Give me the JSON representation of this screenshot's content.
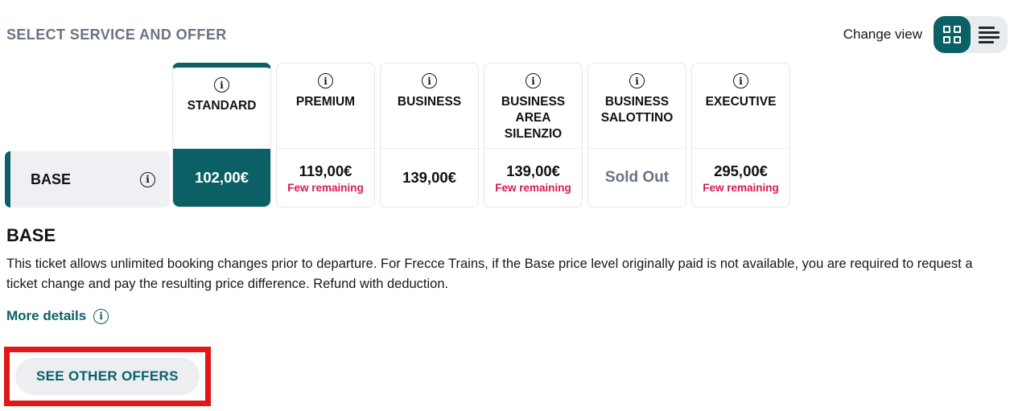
{
  "header": {
    "title": "SELECT SERVICE AND OFFER",
    "change_view_label": "Change view",
    "view_toggle": {
      "active_view": "grid",
      "views": [
        "grid",
        "list"
      ]
    }
  },
  "offer_matrix": {
    "row": {
      "label": "BASE"
    },
    "columns": [
      {
        "name": "STANDARD",
        "price": "102,00€",
        "availability": "",
        "state": "selected"
      },
      {
        "name": "PREMIUM",
        "price": "119,00€",
        "availability": "Few remaining",
        "state": "available"
      },
      {
        "name": "BUSINESS",
        "price": "139,00€",
        "availability": "",
        "state": "available"
      },
      {
        "name": "BUSINESS AREA SILENZIO",
        "price": "139,00€",
        "availability": "Few remaining",
        "state": "available"
      },
      {
        "name": "BUSINESS SALOTTINO",
        "price": "Sold Out",
        "availability": "",
        "state": "sold_out"
      },
      {
        "name": "EXECUTIVE",
        "price": "295,00€",
        "availability": "Few remaining",
        "state": "available"
      }
    ]
  },
  "offer_details": {
    "heading": "BASE",
    "description": "This ticket allows unlimited booking changes prior to departure. For Frecce Trains, if the Base price level originally paid is not available, you are required to request a ticket change and pay the resulting price difference. Refund with deduction.",
    "more_details_label": "More details"
  },
  "actions": {
    "see_other_offers_label": "SEE OTHER OFFERS"
  },
  "colors": {
    "accent_teal": "#0b6065",
    "alert_red": "#d9194d",
    "highlight_border_red": "#e01818",
    "title_gray": "#6b7383",
    "sold_out_gray": "#6a7382",
    "row_background": "#eef0f4"
  }
}
